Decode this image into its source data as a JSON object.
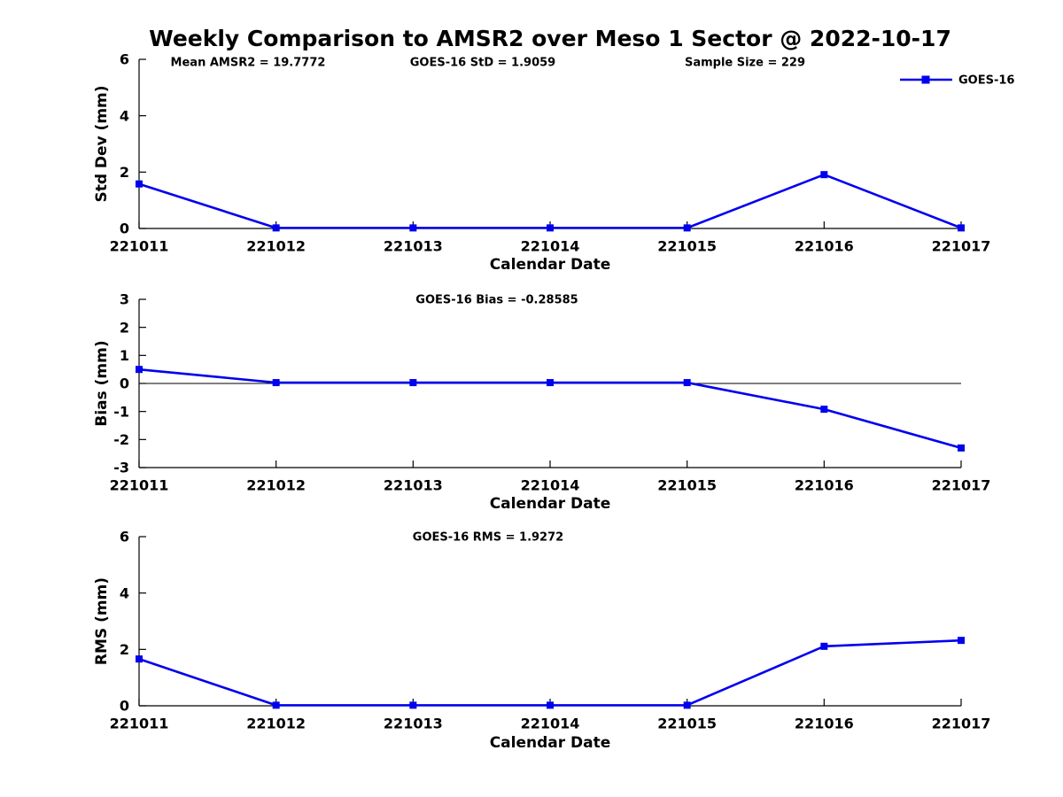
{
  "title": "Weekly Comparison to AMSR2 over Meso 1 Sector @ 2022-10-17",
  "colors": {
    "series": "#0000EE",
    "axis": "#000000",
    "text": "#000000",
    "background": "#ffffff"
  },
  "legend": {
    "label": "GOES-16",
    "marker": "square-icon",
    "position": "upper right"
  },
  "chart_data": [
    {
      "type": "line",
      "name": "std-dev",
      "ylabel": "Std Dev (mm)",
      "xlabel": "Calendar Date",
      "ylim": [
        0,
        6
      ],
      "yticks": [
        0,
        2,
        4,
        6
      ],
      "categories": [
        "221011",
        "221012",
        "221013",
        "221014",
        "221015",
        "221016",
        "221017"
      ],
      "series": [
        {
          "name": "GOES-16",
          "values": [
            1.58,
            0.02,
            0.02,
            0.02,
            0.02,
            1.91,
            0.02
          ]
        }
      ],
      "annotations": [
        "Mean AMSR2 = 19.7772",
        "GOES-16 StD = 1.9059",
        "Sample Size = 229"
      ],
      "grid": false,
      "show_legend": true
    },
    {
      "type": "line",
      "name": "bias",
      "ylabel": "Bias (mm)",
      "xlabel": "Calendar Date",
      "ylim": [
        -3,
        3
      ],
      "yticks": [
        3,
        2,
        1,
        0,
        -1,
        -2,
        -3
      ],
      "zero_line": true,
      "categories": [
        "221011",
        "221012",
        "221013",
        "221014",
        "221015",
        "221016",
        "221017"
      ],
      "series": [
        {
          "name": "GOES-16",
          "values": [
            0.5,
            0.03,
            0.03,
            0.03,
            0.03,
            -0.92,
            -2.3
          ]
        }
      ],
      "annotations": [
        "GOES-16 Bias  = -0.28585"
      ],
      "grid": false,
      "show_legend": false
    },
    {
      "type": "line",
      "name": "rms",
      "ylabel": "RMS (mm)",
      "xlabel": "Calendar Date",
      "ylim": [
        0,
        6
      ],
      "yticks": [
        0,
        2,
        4,
        6
      ],
      "categories": [
        "221011",
        "221012",
        "221013",
        "221014",
        "221015",
        "221016",
        "221017"
      ],
      "series": [
        {
          "name": "GOES-16",
          "values": [
            1.66,
            0.02,
            0.02,
            0.02,
            0.02,
            2.11,
            2.32
          ]
        }
      ],
      "annotations": [
        "GOES-16 RMS = 1.9272"
      ],
      "grid": false,
      "show_legend": false
    }
  ]
}
